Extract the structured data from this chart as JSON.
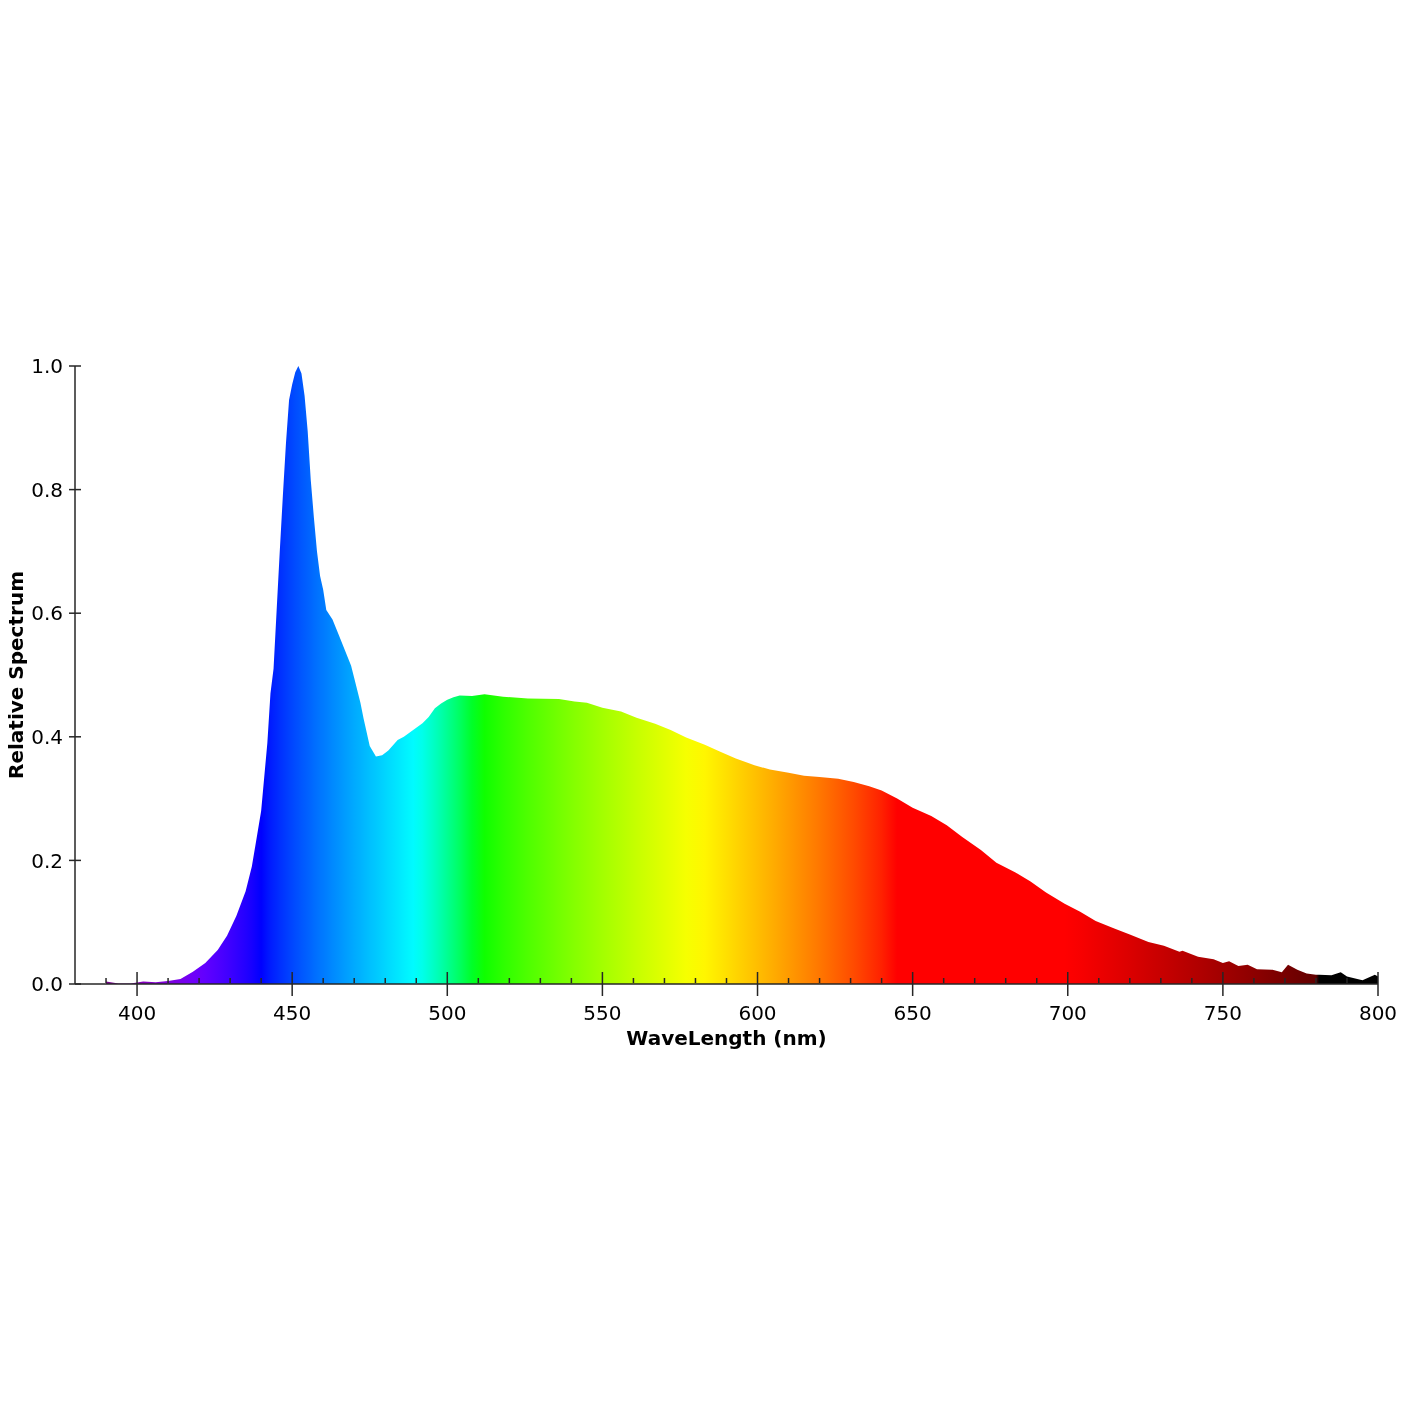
{
  "chart_data": {
    "type": "area",
    "xlabel": "WaveLength (nm)",
    "ylabel": "Relative Spectrum",
    "x": [
      390,
      394,
      398,
      402,
      406,
      410,
      414,
      418,
      422,
      426,
      429,
      432,
      435,
      437,
      440,
      442,
      443,
      444,
      445,
      446,
      447,
      448,
      449,
      450,
      451,
      452,
      453,
      454,
      455,
      456,
      457,
      458,
      459,
      460,
      461,
      463,
      465,
      467,
      469,
      470,
      472,
      473,
      475,
      477,
      479,
      481,
      484,
      486,
      489,
      492,
      494,
      496,
      498,
      500,
      502,
      504,
      508,
      512,
      518,
      526,
      536,
      541,
      545,
      550,
      556,
      561,
      567,
      572,
      577,
      583,
      588,
      593,
      599,
      604,
      610,
      615,
      620,
      626,
      631,
      636,
      640,
      645,
      650,
      656,
      661,
      666,
      672,
      677,
      683,
      688,
      693,
      699,
      704,
      709,
      715,
      720,
      726,
      731,
      736,
      737,
      742,
      747,
      750,
      752,
      755,
      758,
      761,
      766,
      769,
      771,
      774,
      777,
      780,
      781,
      785,
      788,
      790,
      795,
      799,
      800
    ],
    "values": [
      0.004,
      0.001,
      0.001,
      0.004,
      0.003,
      0.005,
      0.008,
      0.02,
      0.034,
      0.055,
      0.078,
      0.11,
      0.15,
      0.19,
      0.28,
      0.39,
      0.47,
      0.51,
      0.605,
      0.7,
      0.79,
      0.875,
      0.945,
      0.97,
      0.99,
      1.0,
      0.988,
      0.952,
      0.895,
      0.815,
      0.755,
      0.7,
      0.66,
      0.638,
      0.605,
      0.59,
      0.565,
      0.54,
      0.515,
      0.495,
      0.455,
      0.43,
      0.385,
      0.368,
      0.37,
      0.378,
      0.395,
      0.4,
      0.411,
      0.422,
      0.432,
      0.446,
      0.454,
      0.46,
      0.464,
      0.467,
      0.466,
      0.469,
      0.465,
      0.462,
      0.461,
      0.457,
      0.455,
      0.447,
      0.441,
      0.431,
      0.421,
      0.411,
      0.399,
      0.387,
      0.376,
      0.365,
      0.354,
      0.347,
      0.342,
      0.337,
      0.335,
      0.332,
      0.327,
      0.32,
      0.313,
      0.3,
      0.285,
      0.272,
      0.257,
      0.238,
      0.217,
      0.196,
      0.181,
      0.166,
      0.148,
      0.13,
      0.117,
      0.102,
      0.09,
      0.08,
      0.068,
      0.062,
      0.052,
      0.054,
      0.044,
      0.04,
      0.034,
      0.037,
      0.029,
      0.031,
      0.024,
      0.023,
      0.019,
      0.031,
      0.023,
      0.017,
      0.015,
      0.015,
      0.014,
      0.019,
      0.012,
      0.006,
      0.015,
      0.012
    ],
    "colors": [
      "#79008d",
      "#7f009d",
      "#8200ad",
      "#8300bc",
      "#8100cc",
      "#7d00db",
      "#7800e9",
      "#6f00f8",
      "#6100ff",
      "#5000ff",
      "#4200ff",
      "#3300ff",
      "#2300ff",
      "#1700ff",
      "#0000ff",
      "#0013ff",
      "#001bff",
      "#0022ff",
      "#0028ff",
      "#002fff",
      "#0035ff",
      "#003bff",
      "#0041ff",
      "#0046ff",
      "#004cff",
      "#0051ff",
      "#0057ff",
      "#005cff",
      "#0061ff",
      "#0066ff",
      "#006cff",
      "#0071ff",
      "#0076ff",
      "#007aff",
      "#007fff",
      "#0089ff",
      "#0092ff",
      "#009cff",
      "#00a5ff",
      "#00aaff",
      "#00b2ff",
      "#00b7ff",
      "#00c0ff",
      "#00c8ff",
      "#00d1ff",
      "#00daff",
      "#00e6ff",
      "#00efff",
      "#00fbff",
      "#00ffea",
      "#00ffd5",
      "#00ffc0",
      "#00ffaa",
      "#00ff92",
      "#00ff7a",
      "#00ff61",
      "#00ff28",
      "#0fff00",
      "#2dff00",
      "#4eff00",
      "#73ff00",
      "#85ff00",
      "#92ff00",
      "#a3ff00",
      "#b6ff00",
      "#c6ff00",
      "#d8ff00",
      "#e7ff00",
      "#f6ff00",
      "#fff600",
      "#ffe600",
      "#ffd500",
      "#ffc100",
      "#ffb000",
      "#ff9b00",
      "#ff8900",
      "#ff7700",
      "#ff5f00",
      "#ff4b00",
      "#ff3400",
      "#ff2100",
      "#ff0000",
      "#ff0000",
      "#ff0000",
      "#ff0000",
      "#ff0000",
      "#ff0000",
      "#ff0000",
      "#ff0000",
      "#ff0000",
      "#ff0000",
      "#ff0000",
      "#f80000",
      "#ef0000",
      "#e40000",
      "#db0000",
      "#cf0000",
      "#c60000",
      "#bc0000",
      "#ba0000",
      "#b10000",
      "#a70000",
      "#a10000",
      "#9d0000",
      "#970000",
      "#910000",
      "#8b0000",
      "#800000",
      "#7a0000",
      "#750000",
      "#6f0000",
      "#680000",
      "#610000",
      "#000000",
      "#000000",
      "#000000",
      "#000000",
      "#000000",
      "#000000",
      "#000000"
    ],
    "xlim": [
      380,
      800
    ],
    "xticks": [
      {
        "value": 390,
        "label": null
      },
      400,
      {
        "value": 410,
        "label": null
      },
      {
        "value": 420,
        "label": null
      },
      {
        "value": 430,
        "label": null
      },
      {
        "value": 440,
        "label": null
      },
      450,
      {
        "value": 460,
        "label": null
      },
      {
        "value": 470,
        "label": null
      },
      {
        "value": 480,
        "label": null
      },
      {
        "value": 490,
        "label": null
      },
      500,
      {
        "value": 510,
        "label": null
      },
      {
        "value": 520,
        "label": null
      },
      {
        "value": 530,
        "label": null
      },
      {
        "value": 540,
        "label": null
      },
      550,
      {
        "value": 560,
        "label": null
      },
      {
        "value": 570,
        "label": null
      },
      {
        "value": 580,
        "label": null
      },
      {
        "value": 590,
        "label": null
      },
      600,
      {
        "value": 610,
        "label": null
      },
      {
        "value": 620,
        "label": null
      },
      {
        "value": 630,
        "label": null
      },
      {
        "value": 640,
        "label": null
      },
      650,
      {
        "value": 660,
        "label": null
      },
      {
        "value": 670,
        "label": null
      },
      {
        "value": 680,
        "label": null
      },
      {
        "value": 690,
        "label": null
      },
      700,
      {
        "value": 710,
        "label": null
      },
      {
        "value": 720,
        "label": null
      },
      {
        "value": 730,
        "label": null
      },
      {
        "value": 740,
        "label": null
      },
      750,
      {
        "value": 760,
        "label": null
      },
      {
        "value": 770,
        "label": null
      },
      {
        "value": 780,
        "label": null
      },
      {
        "value": 790,
        "label": null
      },
      800
    ],
    "ylim": [
      0,
      1
    ],
    "yticks": [
      {
        "value": 0,
        "label": "0.0"
      },
      {
        "value": 0.2,
        "label": "0.2"
      },
      {
        "value": 0.4,
        "label": "0.4"
      },
      {
        "value": 0.6,
        "label": "0.6"
      },
      {
        "value": 0.8,
        "label": "0.8"
      },
      {
        "value": 1,
        "label": "1.0"
      }
    ]
  }
}
